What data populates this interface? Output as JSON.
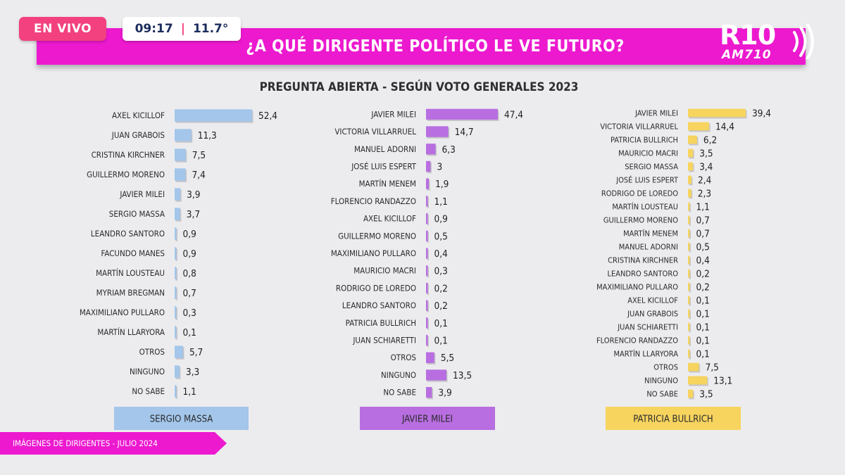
{
  "header": {
    "live_label": "EN VIVO",
    "time": "09:17",
    "separator": "|",
    "temperature": "11.7°",
    "title": "¿A QUÉ DIRIGENTE POLÍTICO LE VE FUTURO?",
    "logo_main": "R10",
    "logo_sub": "AM710"
  },
  "chart_subtitle": "PREGUNTA ABIERTA - SEGÚN VOTO GENERALES 2023",
  "footer": {
    "text": "IMÁGENES DE DIRIGENTES - JULIO 2024"
  },
  "colors": {
    "accent_magenta": "#ec19cf",
    "live_pink": "#f2417e"
  },
  "chart_data": [
    {
      "type": "bar",
      "orientation": "horizontal",
      "group_label": "SERGIO MASSA",
      "color": "#a3c6ea",
      "categories": [
        "AXEL KICILLOF",
        "JUAN GRABOIS",
        "CRISTINA KIRCHNER",
        "GUILLERMO MORENO",
        "JAVIER MILEI",
        "SERGIO MASSA",
        "LEANDRO SANTORO",
        "FACUNDO MANES",
        "MARTÍN LOUSTEAU",
        "MYRIAM BREGMAN",
        "MAXIMILIANO PULLARO",
        "MARTÍN LLARYORA",
        "OTROS",
        "NINGUNO",
        "NO SABE"
      ],
      "values": [
        52.4,
        11.3,
        7.5,
        7.4,
        3.9,
        3.7,
        0.9,
        0.9,
        0.8,
        0.7,
        0.3,
        0.1,
        5.7,
        3.3,
        1.1
      ],
      "value_labels": [
        "52,4",
        "11,3",
        "7,5",
        "7,4",
        "3,9",
        "3,7",
        "0,9",
        "0,9",
        "0,8",
        "0,7",
        "0,3",
        "0,1",
        "5,7",
        "3,3",
        "1,1"
      ]
    },
    {
      "type": "bar",
      "orientation": "horizontal",
      "group_label": "JAVIER MILEI",
      "color": "#b86ee0",
      "categories": [
        "JAVIER MILEI",
        "VICTORIA VILLARRUEL",
        "MANUEL ADORNI",
        "JOSÉ LUIS ESPERT",
        "MARTÍN MENEM",
        "FLORENCIO RANDAZZO",
        "AXEL KICILLOF",
        "GUILLERMO MORENO",
        "MAXIMILIANO PULLARO",
        "MAURICIO MACRI",
        "RODRIGO DE LOREDO",
        "LEANDRO SANTORO",
        "PATRICIA BULLRICH",
        "JUAN SCHIARETTI",
        "OTROS",
        "NINGUNO",
        "NO SABE"
      ],
      "values": [
        47.4,
        14.7,
        6.3,
        3,
        1.9,
        1.1,
        0.9,
        0.5,
        0.4,
        0.3,
        0.2,
        0.2,
        0.1,
        0.1,
        5.5,
        13.5,
        3.9
      ],
      "value_labels": [
        "47,4",
        "14,7",
        "6,3",
        "3",
        "1,9",
        "1,1",
        "0,9",
        "0,5",
        "0,4",
        "0,3",
        "0,2",
        "0,2",
        "0,1",
        "0,1",
        "5,5",
        "13,5",
        "3,9"
      ]
    },
    {
      "type": "bar",
      "orientation": "horizontal",
      "group_label": "PATRICIA BULLRICH",
      "color": "#f7d45e",
      "categories": [
        "JAVIER MILEI",
        "VICTORIA VILLARRUEL",
        "PATRICIA BULLRICH",
        "MAURICIO MACRI",
        "SERGIO MASSA",
        "JOSÉ LUIS ESPERT",
        "RODRIGO DE LOREDO",
        "MARTÍN LOUSTEAU",
        "GUILLERMO MORENO",
        "MARTÍN MENEM",
        "MANUEL ADORNI",
        "CRISTINA KIRCHNER",
        "LEANDRO SANTORO",
        "MAXIMILIANO PULLARO",
        "AXEL KICILLOF",
        "JUAN GRABOIS",
        "JUAN SCHIARETTI",
        "FLORENCIO RANDAZZO",
        "MARTÍN LLARYORA",
        "OTROS",
        "NINGUNO",
        "NO SABE"
      ],
      "values": [
        39.4,
        14.4,
        6.2,
        3.5,
        3.4,
        2.4,
        2.3,
        1.1,
        0.7,
        0.7,
        0.5,
        0.4,
        0.2,
        0.2,
        0.1,
        0.1,
        0.1,
        0.1,
        0.1,
        7.5,
        13.1,
        3.5
      ],
      "value_labels": [
        "39,4",
        "14,4",
        "6,2",
        "3,5",
        "3,4",
        "2,4",
        "2,3",
        "1,1",
        "0,7",
        "0,7",
        "0,5",
        "0,4",
        "0,2",
        "0,2",
        "0,1",
        "0,1",
        "0,1",
        "0,1",
        "0,1",
        "7,5",
        "13,1",
        "3,5"
      ]
    }
  ]
}
